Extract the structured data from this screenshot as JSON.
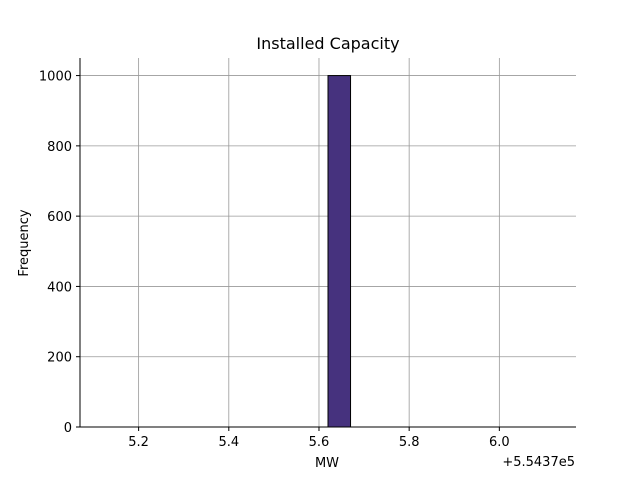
{
  "chart_data": {
    "type": "bar",
    "title": "Installed Capacity",
    "xlabel": "MW",
    "ylabel": "Frequency",
    "x_offset_label": "+5.5437e5",
    "x_tick_labels": [
      "5.2",
      "5.4",
      "5.6",
      "5.8",
      "6.0"
    ],
    "x_ticks": [
      5.2,
      5.4,
      5.6,
      5.8,
      6.0
    ],
    "xlim": [
      5.07,
      6.17
    ],
    "y_ticks": [
      0,
      200,
      400,
      600,
      800,
      1000
    ],
    "ylim": [
      0,
      1050
    ],
    "grid": true,
    "bins": [
      {
        "x0": 5.12,
        "x1": 5.17,
        "count": 0
      },
      {
        "x0": 5.17,
        "x1": 5.22,
        "count": 0
      },
      {
        "x0": 5.22,
        "x1": 5.27,
        "count": 0
      },
      {
        "x0": 5.27,
        "x1": 5.32,
        "count": 0
      },
      {
        "x0": 5.32,
        "x1": 5.37,
        "count": 0
      },
      {
        "x0": 5.37,
        "x1": 5.42,
        "count": 0
      },
      {
        "x0": 5.42,
        "x1": 5.47,
        "count": 0
      },
      {
        "x0": 5.47,
        "x1": 5.52,
        "count": 0
      },
      {
        "x0": 5.52,
        "x1": 5.57,
        "count": 0
      },
      {
        "x0": 5.57,
        "x1": 5.62,
        "count": 0
      },
      {
        "x0": 5.62,
        "x1": 5.67,
        "count": 1000
      },
      {
        "x0": 5.67,
        "x1": 5.72,
        "count": 0
      },
      {
        "x0": 5.72,
        "x1": 5.77,
        "count": 0
      },
      {
        "x0": 5.77,
        "x1": 5.82,
        "count": 0
      },
      {
        "x0": 5.82,
        "x1": 5.87,
        "count": 0
      },
      {
        "x0": 5.87,
        "x1": 5.92,
        "count": 0
      },
      {
        "x0": 5.92,
        "x1": 5.97,
        "count": 0
      },
      {
        "x0": 5.97,
        "x1": 6.02,
        "count": 0
      },
      {
        "x0": 6.02,
        "x1": 6.07,
        "count": 0
      },
      {
        "x0": 6.07,
        "x1": 6.12,
        "count": 0
      }
    ],
    "bar_color": "#46327e",
    "bar_edge_color": "#000000",
    "grid_color": "#999999"
  }
}
